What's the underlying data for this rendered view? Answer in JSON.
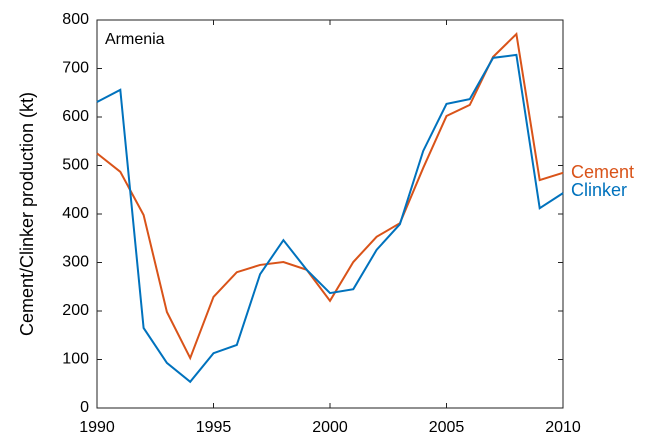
{
  "chart_data": {
    "type": "line",
    "ylabel": "Cement/Clinker production (kt)",
    "annotation": "Armenia",
    "x": [
      1990,
      1991,
      1992,
      1993,
      1994,
      1995,
      1996,
      1997,
      1998,
      1999,
      2000,
      2001,
      2002,
      2003,
      2004,
      2005,
      2006,
      2007,
      2008,
      2009,
      2010
    ],
    "series": [
      {
        "name": "Cement",
        "color": "#d95319",
        "values": [
          525,
          487,
          398,
          198,
          103,
          229,
          280,
          295,
          301,
          285,
          221,
          301,
          353,
          381,
          495,
          602,
          625,
          724,
          771,
          470,
          485
        ]
      },
      {
        "name": "Clinker",
        "color": "#0072bd",
        "values": [
          631,
          656,
          165,
          93,
          54,
          113,
          130,
          276,
          346,
          285,
          237,
          245,
          326,
          379,
          530,
          627,
          637,
          722,
          728,
          412,
          443
        ]
      }
    ],
    "xlim": [
      1990,
      2010
    ],
    "xticks": [
      1990,
      1995,
      2000,
      2005,
      2010
    ],
    "ylim": [
      0,
      800
    ],
    "yticks": [
      0,
      100,
      200,
      300,
      400,
      500,
      600,
      700,
      800
    ],
    "grid": false,
    "legend": "right"
  }
}
